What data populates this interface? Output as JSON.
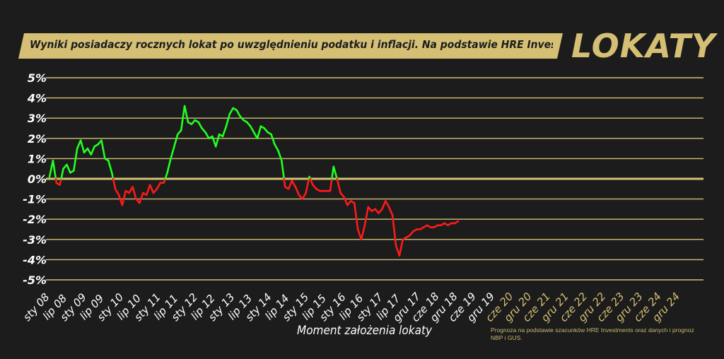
{
  "header": {
    "title": "Wyniki posiadaczy rocznych lokat po uwzględnieniu podatku i inflacji. Na podstawie HRE Investments",
    "brand": "LOKATY"
  },
  "footnote": "Prognoza na podstawie szacunków HRE Investments oraz danych i prognoz NBP i GUS.",
  "colors": {
    "positive": "#22ff22",
    "negative": "#ff1a1a",
    "gold": "#d4bf74",
    "forecast_label": "#d4bf74",
    "background": "#1c1c1c"
  },
  "chart_data": {
    "type": "line",
    "xlabel": "Moment założenia lokaty",
    "ylabel": "",
    "ylim": [
      -5,
      5
    ],
    "y_ticks": [
      "5%",
      "4%",
      "3%",
      "2%",
      "1%",
      "0%",
      "-1%",
      "-2%",
      "-3%",
      "-4%",
      "-5%"
    ],
    "x_ticks": [
      "sty 08",
      "lip 08",
      "sty 09",
      "lip 09",
      "sty 10",
      "lip 10",
      "sty 11",
      "lip 11",
      "sty 12",
      "lip 12",
      "sty 13",
      "lip 13",
      "sty 14",
      "lip 14",
      "sty 15",
      "lip 15",
      "sty 16",
      "lip 16",
      "sty 17",
      "lip 17",
      "gru 17",
      "cze 18",
      "gru 18",
      "cze 19",
      "gru 19",
      "cze 20",
      "gru 20",
      "cze 21",
      "gru 21",
      "cze 22",
      "gru 22",
      "cze 23",
      "gru 23",
      "cze 24",
      "gru 24"
    ],
    "forecast_ticks_from": "cze 20",
    "grid": true,
    "points": [
      [
        "sty 08",
        0.1
      ],
      [
        "lut 08",
        0.9
      ],
      [
        "mar 08",
        -0.2
      ],
      [
        "kwi 08",
        -0.3
      ],
      [
        "maj 08",
        0.5
      ],
      [
        "cze 08",
        0.7
      ],
      [
        "lip 08",
        0.3
      ],
      [
        "sie 08",
        0.4
      ],
      [
        "wrz 08",
        1.5
      ],
      [
        "paź 08",
        1.9
      ],
      [
        "lis 08",
        1.3
      ],
      [
        "gru 08",
        1.5
      ],
      [
        "sty 09",
        1.2
      ],
      [
        "lut 09",
        1.6
      ],
      [
        "mar 09",
        1.7
      ],
      [
        "kwi 09",
        1.9
      ],
      [
        "maj 09",
        1.0
      ],
      [
        "cze 09",
        0.9
      ],
      [
        "lip 09",
        0.3
      ],
      [
        "sie 09",
        -0.5
      ],
      [
        "wrz 09",
        -0.8
      ],
      [
        "paź 09",
        -1.3
      ],
      [
        "lis 09",
        -0.6
      ],
      [
        "gru 09",
        -0.7
      ],
      [
        "sty 10",
        -0.4
      ],
      [
        "lut 10",
        -1.0
      ],
      [
        "mar 10",
        -1.2
      ],
      [
        "kwi 10",
        -0.7
      ],
      [
        "maj 10",
        -0.8
      ],
      [
        "cze 10",
        -0.3
      ],
      [
        "lip 10",
        -0.7
      ],
      [
        "sie 10",
        -0.5
      ],
      [
        "wrz 10",
        -0.2
      ],
      [
        "paź 10",
        -0.2
      ],
      [
        "lis 10",
        0.3
      ],
      [
        "gru 10",
        1.0
      ],
      [
        "sty 11",
        1.6
      ],
      [
        "lut 11",
        2.2
      ],
      [
        "mar 11",
        2.4
      ],
      [
        "kwi 11",
        3.6
      ],
      [
        "maj 11",
        2.8
      ],
      [
        "cze 11",
        2.7
      ],
      [
        "lip 11",
        2.9
      ],
      [
        "sie 11",
        2.8
      ],
      [
        "wrz 11",
        2.5
      ],
      [
        "paź 11",
        2.3
      ],
      [
        "lis 11",
        2.0
      ],
      [
        "gru 11",
        2.1
      ],
      [
        "sty 12",
        1.6
      ],
      [
        "lut 12",
        2.2
      ],
      [
        "mar 12",
        2.1
      ],
      [
        "kwi 12",
        2.6
      ],
      [
        "maj 12",
        3.2
      ],
      [
        "cze 12",
        3.5
      ],
      [
        "lip 12",
        3.4
      ],
      [
        "sie 12",
        3.1
      ],
      [
        "wrz 12",
        2.9
      ],
      [
        "paź 12",
        2.8
      ],
      [
        "lis 12",
        2.6
      ],
      [
        "gru 12",
        2.3
      ],
      [
        "sty 13",
        2.0
      ],
      [
        "lut 13",
        2.6
      ],
      [
        "mar 13",
        2.5
      ],
      [
        "kwi 13",
        2.3
      ],
      [
        "maj 13",
        2.2
      ],
      [
        "cze 13",
        1.7
      ],
      [
        "lip 13",
        1.4
      ],
      [
        "sie 13",
        0.9
      ],
      [
        "wrz 13",
        -0.4
      ],
      [
        "paź 13",
        -0.5
      ],
      [
        "lis 13",
        -0.1
      ],
      [
        "gru 13",
        -0.4
      ],
      [
        "sty 14",
        -0.8
      ],
      [
        "lut 14",
        -1.0
      ],
      [
        "mar 14",
        -0.7
      ],
      [
        "kwi 14",
        0.1
      ],
      [
        "maj 14",
        -0.3
      ],
      [
        "cze 14",
        -0.5
      ],
      [
        "lip 14",
        -0.6
      ],
      [
        "sie 14",
        -0.6
      ],
      [
        "wrz 14",
        -0.6
      ],
      [
        "paź 14",
        -0.6
      ],
      [
        "lis 14",
        0.6
      ],
      [
        "gru 14",
        0.0
      ],
      [
        "sty 15",
        -0.7
      ],
      [
        "lut 15",
        -0.9
      ],
      [
        "mar 15",
        -1.3
      ],
      [
        "kwi 15",
        -1.1
      ],
      [
        "maj 15",
        -1.2
      ],
      [
        "cze 15",
        -2.5
      ],
      [
        "lip 15",
        -3.0
      ],
      [
        "sie 15",
        -2.3
      ],
      [
        "wrz 15",
        -1.4
      ],
      [
        "paź 15",
        -1.6
      ],
      [
        "lis 15",
        -1.5
      ],
      [
        "gru 15",
        -1.7
      ],
      [
        "sty 16",
        -1.5
      ],
      [
        "lut 16",
        -1.1
      ],
      [
        "mar 16",
        -1.4
      ],
      [
        "kwi 16",
        -1.8
      ],
      [
        "maj 16",
        -3.3
      ],
      [
        "cze 16",
        -3.8
      ],
      [
        "lip 16",
        -3.0
      ],
      [
        "sie 16",
        -2.9
      ],
      [
        "wrz 16",
        -2.8
      ],
      [
        "paź 16",
        -2.6
      ],
      [
        "lis 16",
        -2.5
      ],
      [
        "gru 16",
        -2.5
      ],
      [
        "sty 17",
        -2.4
      ],
      [
        "lut 17",
        -2.3
      ],
      [
        "mar 17",
        -2.4
      ],
      [
        "kwi 17",
        -2.4
      ],
      [
        "maj 17",
        -2.3
      ],
      [
        "cze 17",
        -2.3
      ],
      [
        "lip 17",
        -2.2
      ],
      [
        "sie 17",
        -2.3
      ],
      [
        "wrz 17",
        -2.2
      ],
      [
        "paź 17",
        -2.2
      ],
      [
        "lis 17",
        -2.1
      ]
    ]
  }
}
